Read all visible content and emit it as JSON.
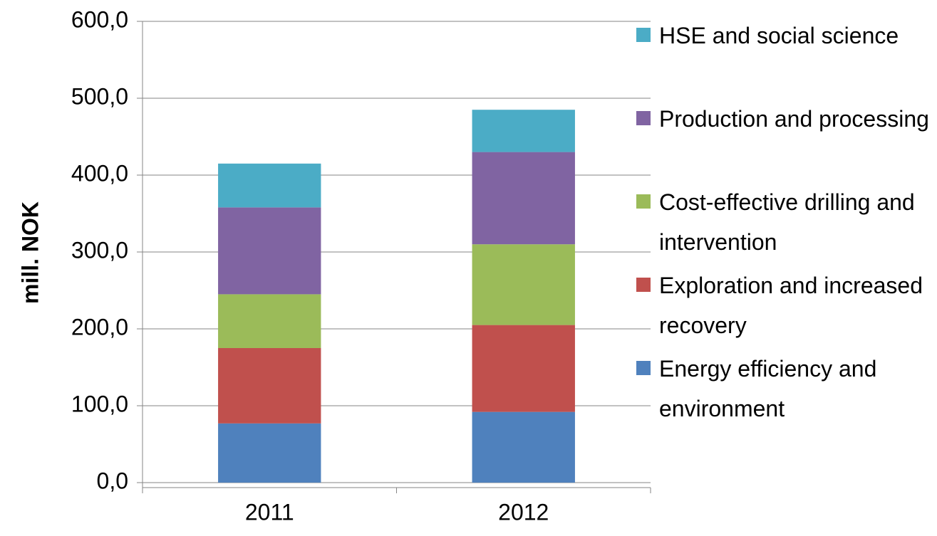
{
  "chart_data": {
    "type": "stacked_bar",
    "categories": [
      "2011",
      "2012"
    ],
    "y_axis_label": "mill. NOK",
    "series": [
      {
        "name": "Energy efficiency and environment",
        "color": "#4f81bd",
        "values": [
          77,
          92
        ]
      },
      {
        "name": "Exploration and increased recovery",
        "color": "#c0504d",
        "values": [
          98,
          113
        ]
      },
      {
        "name": "Cost-effective drilling and intervention",
        "color": "#9bbb59",
        "values": [
          70,
          105
        ]
      },
      {
        "name": "Production and processing",
        "color": "#8064a2",
        "values": [
          113,
          120
        ]
      },
      {
        "name": "HSE and social science",
        "color": "#4bacc6",
        "values": [
          57,
          55
        ]
      }
    ],
    "ylim": [
      0,
      600
    ],
    "yticks": [
      {
        "value": 0,
        "label": "0,0"
      },
      {
        "value": 100,
        "label": "100,0"
      },
      {
        "value": 200,
        "label": "200,0"
      },
      {
        "value": 300,
        "label": "300,0"
      },
      {
        "value": 400,
        "label": "400,0"
      },
      {
        "value": 500,
        "label": "500,0"
      },
      {
        "value": 600,
        "label": "600,0"
      }
    ],
    "grid": true,
    "legend": "right"
  }
}
